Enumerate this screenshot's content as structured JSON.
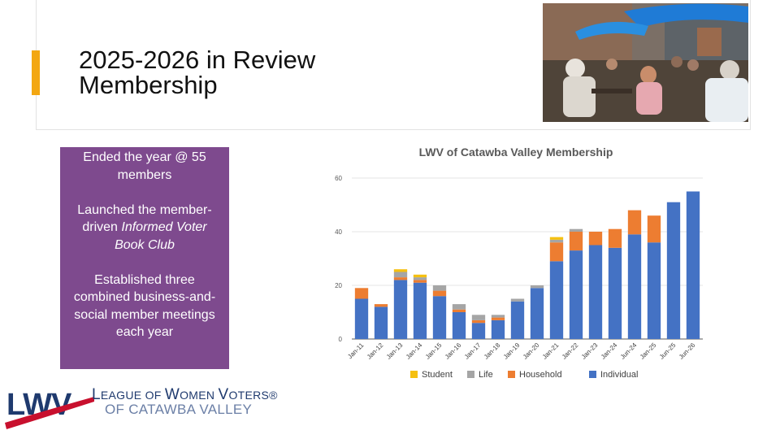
{
  "slide": {
    "title_line1": "2025-2026 in Review",
    "title_line2": "Membership"
  },
  "callout": {
    "p1": "Ended the year @ 55 members",
    "p2_prefix": "Launched the member-driven ",
    "p2_italic": "Informed Voter Book Club",
    "p3": "Established three combined business-and-social member meetings each year"
  },
  "logo": {
    "wordmark": "LWV",
    "line1_a": "L",
    "line1_b": "EAGUE ",
    "line1_c": "OF ",
    "line1_d": "W",
    "line1_e": "OMEN ",
    "line1_f": "V",
    "line1_g": "OTERS",
    "registered": "®",
    "line2": "OF CATAWBA VALLEY"
  },
  "colors": {
    "accent": "#f3a712",
    "callout_bg": "#7e4a8e",
    "student": "#f5c010",
    "life": "#a5a5a5",
    "household": "#ed7d31",
    "individual": "#4472c4"
  },
  "chart_data": {
    "type": "bar",
    "stacked": true,
    "title": "LWV of Catawba Valley Membership",
    "categories": [
      "Jan-11",
      "Jan-12",
      "Jan-13",
      "Jan-14",
      "Jan-15",
      "Jan-16",
      "Jan-17",
      "Jan-18",
      "Jan-19",
      "Jan-20",
      "Jan-21",
      "Jan-22",
      "Jan-23",
      "Jan-24",
      "Jun-24",
      "Jan-25",
      "Jun-25",
      "Jun-26"
    ],
    "series": [
      {
        "name": "Individual",
        "color": "#4472c4",
        "values": [
          15,
          12,
          22,
          21,
          16,
          10,
          6,
          7,
          14,
          19,
          29,
          33,
          35,
          34,
          39,
          36,
          51,
          55
        ]
      },
      {
        "name": "Household",
        "color": "#ed7d31",
        "values": [
          4,
          1,
          1,
          1,
          2,
          1,
          1,
          1,
          0,
          0,
          7,
          7,
          5,
          7,
          9,
          10,
          0,
          0
        ]
      },
      {
        "name": "Life",
        "color": "#a5a5a5",
        "values": [
          0,
          0,
          2,
          1,
          2,
          2,
          2,
          1,
          1,
          1,
          1,
          1,
          0,
          0,
          0,
          0,
          0,
          0
        ]
      },
      {
        "name": "Student",
        "color": "#f5c010",
        "values": [
          0,
          0,
          1,
          1,
          0,
          0,
          0,
          0,
          0,
          0,
          1,
          0,
          0,
          0,
          0,
          0,
          0,
          0
        ]
      }
    ],
    "legend_order": [
      "Student",
      "Life",
      "Household",
      "Individual"
    ],
    "legend_position": "bottom",
    "yticks": [
      0,
      20,
      40,
      60
    ],
    "ylim": [
      0,
      60
    ],
    "xlabel": "",
    "ylabel": ""
  }
}
